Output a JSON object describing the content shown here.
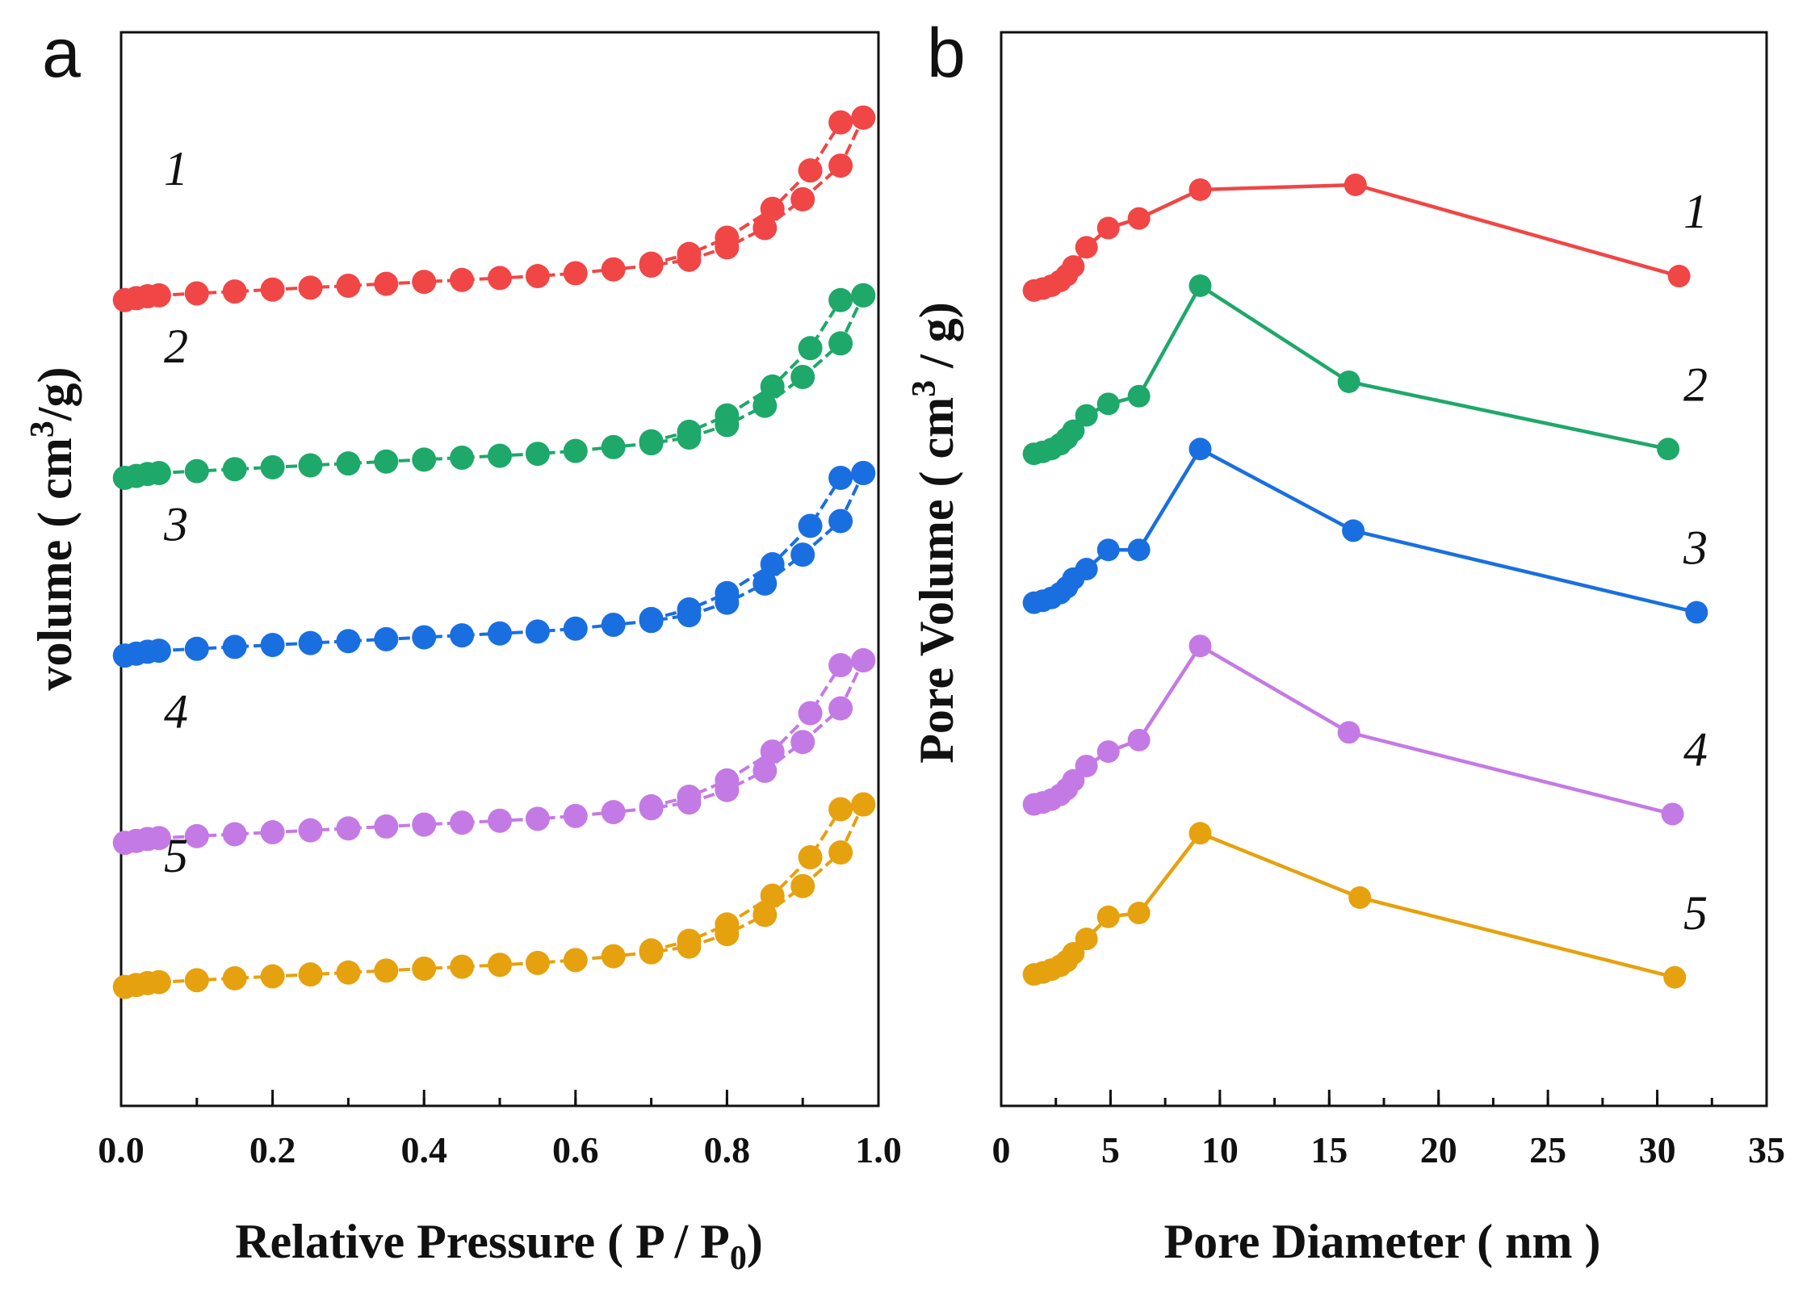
{
  "chart_data": [
    {
      "type": "scatter",
      "panel": "a",
      "title": "",
      "xlabel": "Relative Pressure ( P / P",
      "xlabel_sub": "0",
      "xlabel_end": ")",
      "ylabel": "volume ( cm",
      "ylabel_sup": "3",
      "ylabel_end": "/g)",
      "xlim": [
        0.0,
        1.0
      ],
      "ylim": [
        0,
        1
      ],
      "x_ticks": [
        "0.0",
        "0.2",
        "0.4",
        "0.6",
        "0.8",
        "1.0"
      ],
      "y_tick_labels": false,
      "series": [
        {
          "name": "1",
          "color": "#f04646",
          "offset": 0.78,
          "adsorption_x": [
            0.005,
            0.02,
            0.035,
            0.05,
            0.1,
            0.15,
            0.2,
            0.25,
            0.3,
            0.35,
            0.4,
            0.45,
            0.5,
            0.55,
            0.6,
            0.65,
            0.7,
            0.75,
            0.8,
            0.85,
            0.9,
            0.95,
            0.98
          ],
          "adsorption_y": [
            0.0,
            0.002,
            0.004,
            0.005,
            0.007,
            0.009,
            0.011,
            0.013,
            0.015,
            0.017,
            0.019,
            0.021,
            0.023,
            0.025,
            0.028,
            0.032,
            0.036,
            0.042,
            0.055,
            0.075,
            0.105,
            0.14,
            0.19
          ],
          "desorption_x": [
            0.98,
            0.95,
            0.91,
            0.86,
            0.8,
            0.75,
            0.7
          ],
          "desorption_y": [
            0.19,
            0.185,
            0.135,
            0.095,
            0.065,
            0.048,
            0.038
          ]
        },
        {
          "name": "2",
          "color": "#1ea86a",
          "offset": 0.595,
          "adsorption_x": [
            0.005,
            0.02,
            0.035,
            0.05,
            0.1,
            0.15,
            0.2,
            0.25,
            0.3,
            0.35,
            0.4,
            0.45,
            0.5,
            0.55,
            0.6,
            0.65,
            0.7,
            0.75,
            0.8,
            0.85,
            0.9,
            0.95,
            0.98
          ],
          "adsorption_y": [
            0.0,
            0.002,
            0.004,
            0.005,
            0.007,
            0.009,
            0.011,
            0.013,
            0.015,
            0.017,
            0.019,
            0.021,
            0.023,
            0.025,
            0.028,
            0.032,
            0.036,
            0.042,
            0.055,
            0.075,
            0.105,
            0.14,
            0.19
          ],
          "desorption_x": [
            0.98,
            0.95,
            0.91,
            0.86,
            0.8,
            0.75,
            0.7
          ],
          "desorption_y": [
            0.19,
            0.185,
            0.135,
            0.095,
            0.065,
            0.048,
            0.038
          ]
        },
        {
          "name": "3",
          "color": "#1a6fe0",
          "offset": 0.41,
          "adsorption_x": [
            0.005,
            0.02,
            0.035,
            0.05,
            0.1,
            0.15,
            0.2,
            0.25,
            0.3,
            0.35,
            0.4,
            0.45,
            0.5,
            0.55,
            0.6,
            0.65,
            0.7,
            0.75,
            0.8,
            0.85,
            0.9,
            0.95,
            0.98
          ],
          "adsorption_y": [
            0.0,
            0.002,
            0.004,
            0.005,
            0.007,
            0.009,
            0.011,
            0.013,
            0.015,
            0.017,
            0.019,
            0.021,
            0.023,
            0.025,
            0.028,
            0.032,
            0.036,
            0.042,
            0.055,
            0.075,
            0.105,
            0.14,
            0.19
          ],
          "desorption_x": [
            0.98,
            0.95,
            0.91,
            0.86,
            0.8,
            0.75,
            0.7
          ],
          "desorption_y": [
            0.19,
            0.185,
            0.135,
            0.095,
            0.065,
            0.048,
            0.038
          ]
        },
        {
          "name": "4",
          "color": "#c47ae4",
          "offset": 0.215,
          "adsorption_x": [
            0.005,
            0.02,
            0.035,
            0.05,
            0.1,
            0.15,
            0.2,
            0.25,
            0.3,
            0.35,
            0.4,
            0.45,
            0.5,
            0.55,
            0.6,
            0.65,
            0.7,
            0.75,
            0.8,
            0.85,
            0.9,
            0.95,
            0.98
          ],
          "adsorption_y": [
            0.0,
            0.002,
            0.004,
            0.005,
            0.007,
            0.009,
            0.011,
            0.013,
            0.015,
            0.017,
            0.019,
            0.021,
            0.023,
            0.025,
            0.028,
            0.032,
            0.036,
            0.042,
            0.055,
            0.075,
            0.105,
            0.14,
            0.19
          ],
          "desorption_x": [
            0.98,
            0.95,
            0.91,
            0.86,
            0.8,
            0.75,
            0.7
          ],
          "desorption_y": [
            0.19,
            0.185,
            0.135,
            0.095,
            0.065,
            0.048,
            0.038
          ]
        },
        {
          "name": "5",
          "color": "#e6a10e",
          "offset": 0.065,
          "adsorption_x": [
            0.005,
            0.02,
            0.035,
            0.05,
            0.1,
            0.15,
            0.2,
            0.25,
            0.3,
            0.35,
            0.4,
            0.45,
            0.5,
            0.55,
            0.6,
            0.65,
            0.7,
            0.75,
            0.8,
            0.85,
            0.9,
            0.95,
            0.98
          ],
          "adsorption_y": [
            0.0,
            0.002,
            0.004,
            0.005,
            0.007,
            0.009,
            0.011,
            0.013,
            0.015,
            0.017,
            0.019,
            0.021,
            0.023,
            0.025,
            0.028,
            0.032,
            0.036,
            0.042,
            0.055,
            0.075,
            0.105,
            0.14,
            0.19
          ],
          "desorption_x": [
            0.98,
            0.95,
            0.91,
            0.86,
            0.8,
            0.75,
            0.7
          ],
          "desorption_y": [
            0.19,
            0.185,
            0.135,
            0.095,
            0.065,
            0.048,
            0.038
          ]
        }
      ]
    },
    {
      "type": "line",
      "panel": "b",
      "title": "",
      "xlabel": "Pore Diameter ( nm )",
      "ylabel": "Pore Volume ( cm",
      "ylabel_sup": "3",
      "ylabel_end": " / g)",
      "xlim": [
        0,
        35
      ],
      "ylim": [
        0,
        1
      ],
      "x_ticks": [
        "0",
        "5",
        "10",
        "15",
        "20",
        "25",
        "30",
        "35"
      ],
      "y_tick_labels": false,
      "series": [
        {
          "name": "1",
          "color": "#f04646",
          "x": [
            1.5,
            1.9,
            2.3,
            2.7,
            3.0,
            3.3,
            3.9,
            4.9,
            6.3,
            9.1,
            16.2,
            31.0
          ],
          "y": [
            0.79,
            0.792,
            0.795,
            0.8,
            0.806,
            0.815,
            0.835,
            0.855,
            0.865,
            0.895,
            0.9,
            0.805
          ]
        },
        {
          "name": "2",
          "color": "#1ea86a",
          "x": [
            1.5,
            1.9,
            2.3,
            2.7,
            3.0,
            3.3,
            3.9,
            4.9,
            6.3,
            9.1,
            15.9,
            30.5
          ],
          "y": [
            0.62,
            0.622,
            0.625,
            0.63,
            0.636,
            0.644,
            0.66,
            0.672,
            0.68,
            0.795,
            0.695,
            0.625
          ]
        },
        {
          "name": "3",
          "color": "#1a6fe0",
          "x": [
            1.5,
            1.9,
            2.3,
            2.7,
            3.0,
            3.3,
            3.9,
            4.9,
            6.3,
            9.1,
            16.1,
            31.8
          ],
          "y": [
            0.465,
            0.467,
            0.47,
            0.475,
            0.481,
            0.49,
            0.5,
            0.52,
            0.52,
            0.625,
            0.54,
            0.455
          ]
        },
        {
          "name": "4",
          "color": "#c47ae4",
          "x": [
            1.5,
            1.9,
            2.3,
            2.7,
            3.0,
            3.3,
            3.9,
            4.9,
            6.3,
            9.1,
            15.9,
            30.7
          ],
          "y": [
            0.255,
            0.257,
            0.26,
            0.265,
            0.271,
            0.28,
            0.295,
            0.31,
            0.322,
            0.42,
            0.33,
            0.245
          ]
        },
        {
          "name": "5",
          "color": "#e6a10e",
          "x": [
            1.5,
            1.9,
            2.3,
            2.7,
            3.0,
            3.3,
            3.9,
            4.9,
            6.3,
            9.1,
            16.4,
            30.8
          ],
          "y": [
            0.078,
            0.08,
            0.083,
            0.087,
            0.092,
            0.1,
            0.115,
            0.138,
            0.142,
            0.225,
            0.158,
            0.075
          ]
        }
      ]
    }
  ],
  "panel_a": {
    "letter": "a",
    "curve_labels": [
      "1",
      "2",
      "3",
      "4",
      "5"
    ]
  },
  "panel_b": {
    "letter": "b",
    "curve_labels": [
      "1",
      "2",
      "3",
      "4",
      "5"
    ]
  }
}
